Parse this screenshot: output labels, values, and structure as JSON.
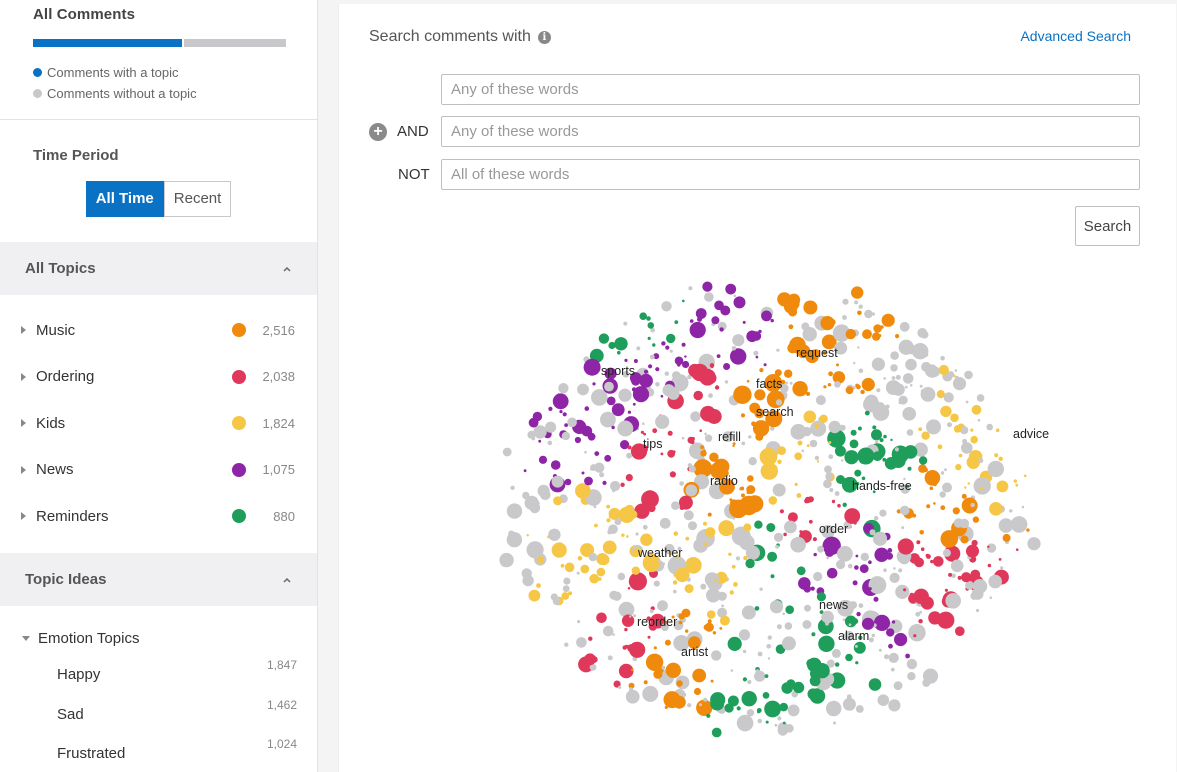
{
  "sidebar": {
    "comments": {
      "title": "All Comments",
      "with_topic_label": "Comments with a topic",
      "without_topic_label": "Comments without a topic",
      "with_topic_fraction": 0.59,
      "colors": {
        "with_topic": "#0a72c4",
        "without_topic": "#c8c8ca"
      }
    },
    "time_period": {
      "title": "Time Period",
      "options": [
        "All Time",
        "Recent"
      ],
      "selected": "All Time"
    },
    "all_topics": {
      "title": "All Topics",
      "items": [
        {
          "label": "Music",
          "count": "2,516",
          "color": "#f08a0c"
        },
        {
          "label": "Ordering",
          "count": "2,038",
          "color": "#e0385a"
        },
        {
          "label": "Kids",
          "count": "1,824",
          "color": "#f6c746"
        },
        {
          "label": "News",
          "count": "1,075",
          "color": "#8e24a6"
        },
        {
          "label": "Reminders",
          "count": "880",
          "color": "#1e9e5a"
        }
      ]
    },
    "topic_ideas": {
      "title": "Topic Ideas",
      "group_label": "Emotion Topics",
      "items": [
        {
          "label": "Happy",
          "count": "1,847"
        },
        {
          "label": "Sad",
          "count": "1,462"
        },
        {
          "label": "Frustrated",
          "count": "1,024"
        }
      ]
    }
  },
  "search": {
    "header": "Search comments with",
    "info_icon": "info-icon",
    "advanced_link": "Advanced Search",
    "rows": [
      {
        "operator": "",
        "placeholder": "Any of these words"
      },
      {
        "operator": "AND",
        "placeholder": "Any of these words"
      },
      {
        "operator": "NOT",
        "placeholder": "All of these words"
      }
    ],
    "button": "Search"
  },
  "bubble_chart": {
    "neutral_color": "#c9c9cb",
    "labels": [
      "request",
      "sports",
      "facts",
      "search",
      "refill",
      "tips",
      "advice",
      "radio",
      "hands-free",
      "order",
      "weather",
      "news",
      "reorder",
      "alarm",
      "artist"
    ]
  }
}
